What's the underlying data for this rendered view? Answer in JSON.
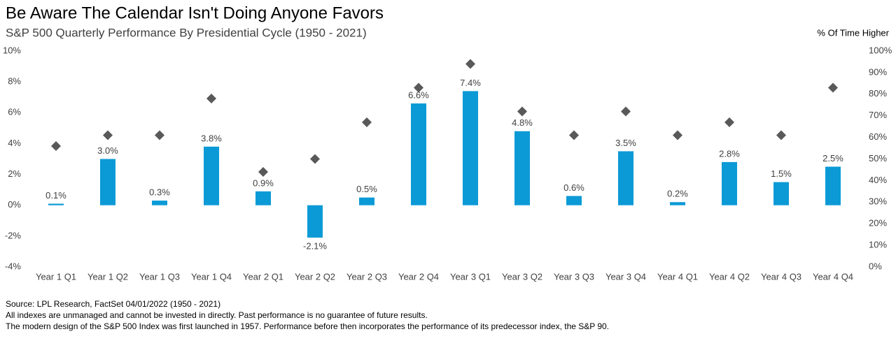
{
  "chart_data": {
    "type": "bar",
    "title": "Be Aware The Calendar Isn't Doing Anyone Favors",
    "subtitle": "S&P 500 Quarterly Performance By Presidential Cycle (1950 - 2021)",
    "y2_label": "% Of Time Higher",
    "notes": [
      "Source: LPL Research, FactSet 04/01/2022 (1950 - 2021)",
      "All indexes are unmanaged and cannot be invested in directly. Past performance is no guarantee of future results.",
      "The modern design of the S&P 500 Index was first launched in 1957. Performance before then incorporates the performance of its  predecessor index, the S&P 90."
    ],
    "categories": [
      "Year 1 Q1",
      "Year 1 Q2",
      "Year 1 Q3",
      "Year 1 Q4",
      "Year 2 Q1",
      "Year 2 Q2",
      "Year 2 Q3",
      "Year 2 Q4",
      "Year 3 Q1",
      "Year 3 Q2",
      "Year 3 Q3",
      "Year 3 Q4",
      "Year 4 Q1",
      "Year 4 Q2",
      "Year 4 Q3",
      "Year 4 Q4"
    ],
    "series": [
      {
        "type": "bar",
        "color": "#0b9ad6",
        "values": [
          0.1,
          3.0,
          0.3,
          3.8,
          0.9,
          -2.1,
          0.5,
          6.6,
          7.4,
          4.8,
          0.6,
          3.5,
          0.2,
          2.8,
          1.5,
          2.5
        ],
        "value_labels": [
          "0.1%",
          "3.0%",
          "0.3%",
          "3.8%",
          "0.9%",
          "-2.1%",
          "0.5%",
          "6.6%",
          "7.4%",
          "4.8%",
          "0.6%",
          "3.5%",
          "0.2%",
          "2.8%",
          "1.5%",
          "2.5%"
        ]
      },
      {
        "type": "scatter",
        "marker": "diamond",
        "axis": "y2",
        "color": "#595959",
        "values": [
          56,
          61,
          61,
          78,
          44,
          50,
          67,
          83,
          94,
          72,
          61,
          72,
          61,
          67,
          61,
          83
        ]
      }
    ],
    "ylim": [
      -4,
      10
    ],
    "yticks": [
      {
        "value": -4,
        "label": "-4%"
      },
      {
        "value": -2,
        "label": "-2%"
      },
      {
        "value": 0,
        "label": "0%"
      },
      {
        "value": 2,
        "label": "2%"
      },
      {
        "value": 4,
        "label": "4%"
      },
      {
        "value": 6,
        "label": "6%"
      },
      {
        "value": 8,
        "label": "8%"
      },
      {
        "value": 10,
        "label": "10%"
      }
    ],
    "y2lim": [
      0,
      100
    ],
    "y2ticks": [
      {
        "value": 0,
        "label": "0%"
      },
      {
        "value": 10,
        "label": "10%"
      },
      {
        "value": 20,
        "label": "20%"
      },
      {
        "value": 30,
        "label": "30%"
      },
      {
        "value": 40,
        "label": "40%"
      },
      {
        "value": 50,
        "label": "50%"
      },
      {
        "value": 60,
        "label": "60%"
      },
      {
        "value": 70,
        "label": "70%"
      },
      {
        "value": 80,
        "label": "80%"
      },
      {
        "value": 90,
        "label": "90%"
      },
      {
        "value": 100,
        "label": "100%"
      }
    ],
    "grid": false
  }
}
